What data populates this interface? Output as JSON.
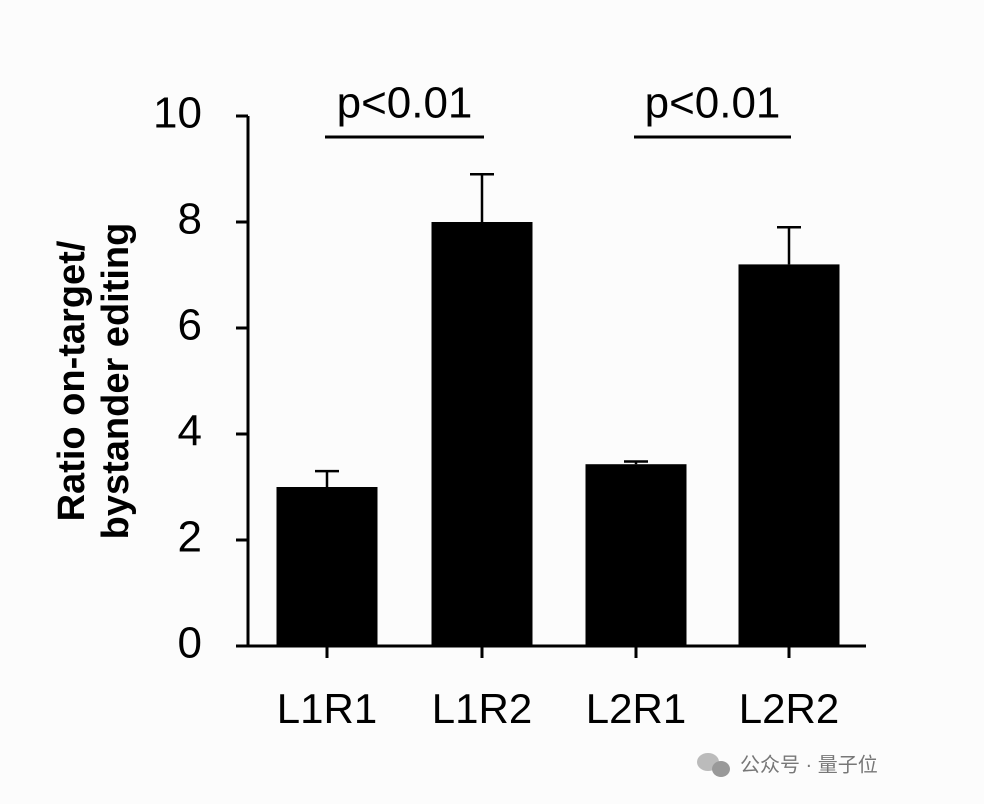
{
  "chart_data": {
    "type": "bar",
    "y_label": [
      "Ratio on-target/",
      "bystander editing"
    ],
    "categories": [
      "L1R1",
      "L1R2",
      "L2R1",
      "L2R2"
    ],
    "values": [
      3.0,
      8.0,
      3.43,
      7.2
    ],
    "errors": [
      0.3,
      0.9,
      0.05,
      0.7
    ],
    "color": "#000000",
    "ylim": [
      0,
      10
    ],
    "yticks": [
      0,
      2,
      4,
      6,
      8,
      10
    ],
    "annotations": [
      "p<0.01",
      "p<0.01"
    ],
    "watermark": "公众号 · 量子位"
  }
}
